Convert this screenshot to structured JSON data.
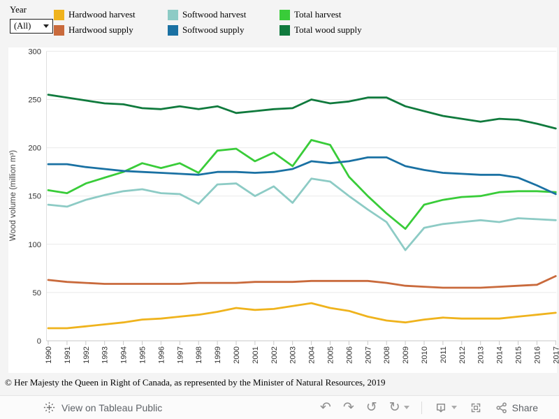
{
  "filter": {
    "label": "Year",
    "value": "(All)"
  },
  "legend": {
    "items": [
      {
        "label": "Hardwood harvest",
        "color": "#efb31d"
      },
      {
        "label": "Hardwood supply",
        "color": "#c96a3c"
      },
      {
        "label": "Softwood harvest",
        "color": "#8dcbc5"
      },
      {
        "label": "Softwood supply",
        "color": "#1a71a3"
      },
      {
        "label": "Total harvest",
        "color": "#39cc39"
      },
      {
        "label": "Total wood supply",
        "color": "#107a3d"
      }
    ]
  },
  "chart_data": {
    "type": "line",
    "x": [
      1990,
      1991,
      1992,
      1993,
      1994,
      1995,
      1996,
      1997,
      1998,
      1999,
      2000,
      2001,
      2002,
      2003,
      2004,
      2005,
      2006,
      2007,
      2008,
      2009,
      2010,
      2011,
      2012,
      2013,
      2014,
      2015,
      2016,
      2017
    ],
    "series": [
      {
        "name": "Hardwood harvest",
        "color": "#efb31d",
        "values": [
          13,
          13,
          15,
          17,
          19,
          22,
          23,
          25,
          27,
          30,
          34,
          32,
          33,
          36,
          39,
          34,
          31,
          25,
          21,
          19,
          22,
          24,
          23,
          23,
          23,
          25,
          27,
          29
        ]
      },
      {
        "name": "Hardwood supply",
        "color": "#c96a3c",
        "values": [
          63,
          61,
          60,
          59,
          59,
          59,
          59,
          59,
          60,
          60,
          60,
          61,
          61,
          61,
          62,
          62,
          62,
          62,
          60,
          57,
          56,
          55,
          55,
          55,
          56,
          57,
          58,
          67
        ]
      },
      {
        "name": "Softwood harvest",
        "color": "#8dcbc5",
        "values": [
          141,
          139,
          146,
          151,
          155,
          157,
          153,
          152,
          142,
          162,
          163,
          150,
          160,
          143,
          168,
          165,
          150,
          136,
          123,
          94,
          117,
          121,
          123,
          125,
          123,
          127,
          126,
          125
        ]
      },
      {
        "name": "Total harvest",
        "color": "#39cc39",
        "values": [
          156,
          153,
          163,
          169,
          175,
          184,
          179,
          184,
          174,
          197,
          199,
          186,
          195,
          181,
          208,
          203,
          170,
          150,
          132,
          116,
          141,
          146,
          149,
          150,
          154,
          155,
          155,
          154
        ]
      },
      {
        "name": "Softwood supply",
        "color": "#1a71a3",
        "values": [
          183,
          183,
          180,
          178,
          176,
          175,
          174,
          173,
          172,
          175,
          175,
          174,
          175,
          178,
          186,
          184,
          186,
          190,
          190,
          181,
          177,
          174,
          173,
          172,
          172,
          169,
          161,
          152
        ]
      },
      {
        "name": "Total wood supply",
        "color": "#107a3d",
        "values": [
          255,
          252,
          249,
          246,
          245,
          241,
          240,
          243,
          240,
          243,
          236,
          238,
          240,
          241,
          250,
          246,
          248,
          252,
          252,
          243,
          238,
          233,
          230,
          227,
          230,
          229,
          225,
          220
        ]
      }
    ],
    "title": "",
    "xlabel": "",
    "ylabel": "Wood volume (million m³)",
    "ylim": [
      0,
      300
    ],
    "yticks": [
      0,
      50,
      100,
      150,
      200,
      250,
      300
    ],
    "grid": true,
    "legend_position": "top"
  },
  "footer": {
    "copyright": "© Her Majesty the Queen in Right of Canada, as represented by the Minister of Natural Resources, 2019"
  },
  "toolbar": {
    "view_label": "View on Tableau Public",
    "share_label": "Share",
    "icons": {
      "undo": "↶",
      "redo": "↷",
      "revert": "↺",
      "refresh": "↻"
    }
  }
}
